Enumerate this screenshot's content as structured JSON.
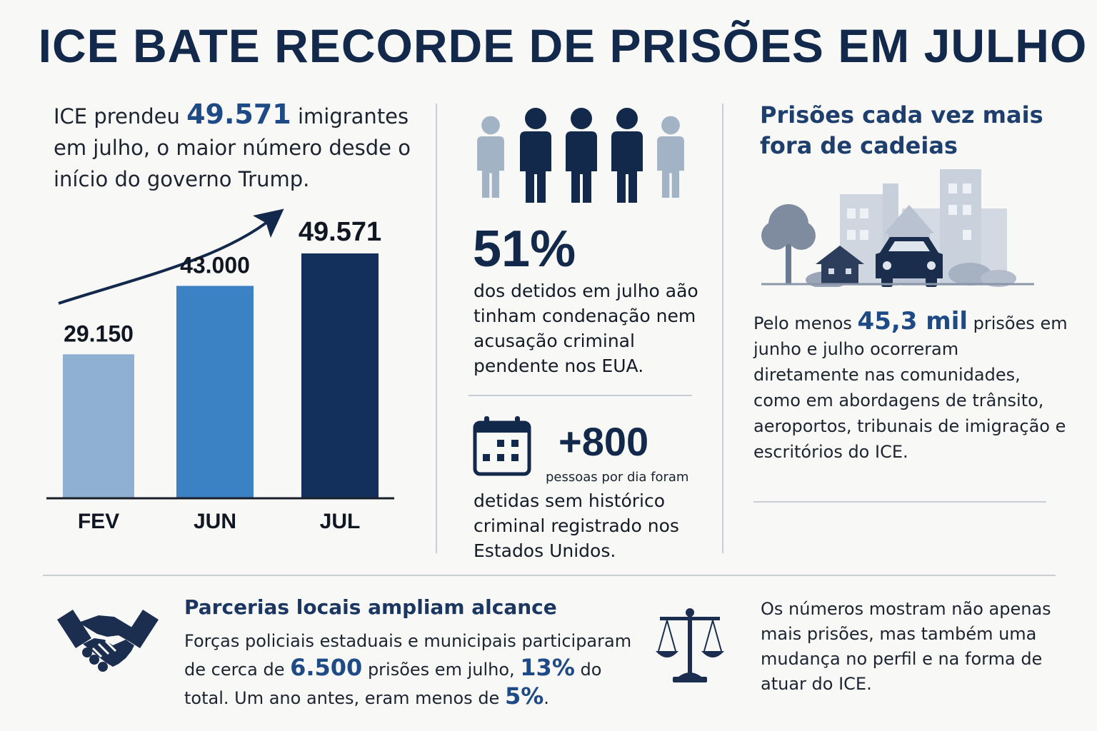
{
  "title": "ICE BATE RECORDE DE PRISÕES EM JULHO",
  "intro": {
    "pre": "ICE prendeu ",
    "highlight": "49.571",
    "post": " imigrantes em julho, o maior número desde o início do governo Trump."
  },
  "chart_data": {
    "type": "bar",
    "categories": [
      "FEV",
      "JUN",
      "JUL"
    ],
    "values": [
      29150,
      43000,
      49571
    ],
    "value_labels": [
      "29.150",
      "43.000",
      "49.571"
    ],
    "colors": [
      "#8fb0d3",
      "#3b82c4",
      "#13305c"
    ],
    "title": "",
    "xlabel": "",
    "ylabel": "",
    "trend_arrow": true
  },
  "center": {
    "people_icons": [
      {
        "name": "person-icon-light",
        "color": "#a3b3c6"
      },
      {
        "name": "person-icon-dark",
        "color": "#13294b"
      },
      {
        "name": "person-icon-dark",
        "color": "#13294b"
      },
      {
        "name": "person-icon-dark",
        "color": "#13294b"
      },
      {
        "name": "person-icon-light",
        "color": "#a3b3c6"
      }
    ],
    "stat1_value": "51%",
    "stat1_text": "dos detidos em julho aão tinham condenação nem acusação criminal pendente nos EUA.",
    "stat2_value": "+800",
    "stat2_sub": "pessoas por dia foram",
    "stat2_text": "detidas sem histórico criminal registrado nos Estados Unidos."
  },
  "right": {
    "heading": "Prisões cada vez mais fora de cadeias",
    "text_pre": "Pelo menos ",
    "text_highlight": "45,3 mil",
    "text_post": " prisões em junho e julho ocorreram diretamente nas comunidades, como em abordagens de trânsito, aeroportos, tribunais de imigração e escritórios do ICE."
  },
  "bottom": {
    "partner_heading": "Parcerias locais  ampliam alcance",
    "partner_t1": "Forças policiais estaduais e municipais participaram de cerca de ",
    "partner_h1": "6.500",
    "partner_t2": " prisões em julho, ",
    "partner_h2": "13%",
    "partner_t3": " do total. Um ano antes, eram menos de ",
    "partner_h3": "5%",
    "partner_t4": ".",
    "closing": "Os números mostram não apenas mais prisões, mas também uma mudança no perfil e na forma de atuar do ICE."
  },
  "icons": {
    "calendar": "calendar-icon",
    "handshake": "handshake-icon",
    "scale": "scale-of-justice-icon",
    "city": "city-scene-icon"
  }
}
